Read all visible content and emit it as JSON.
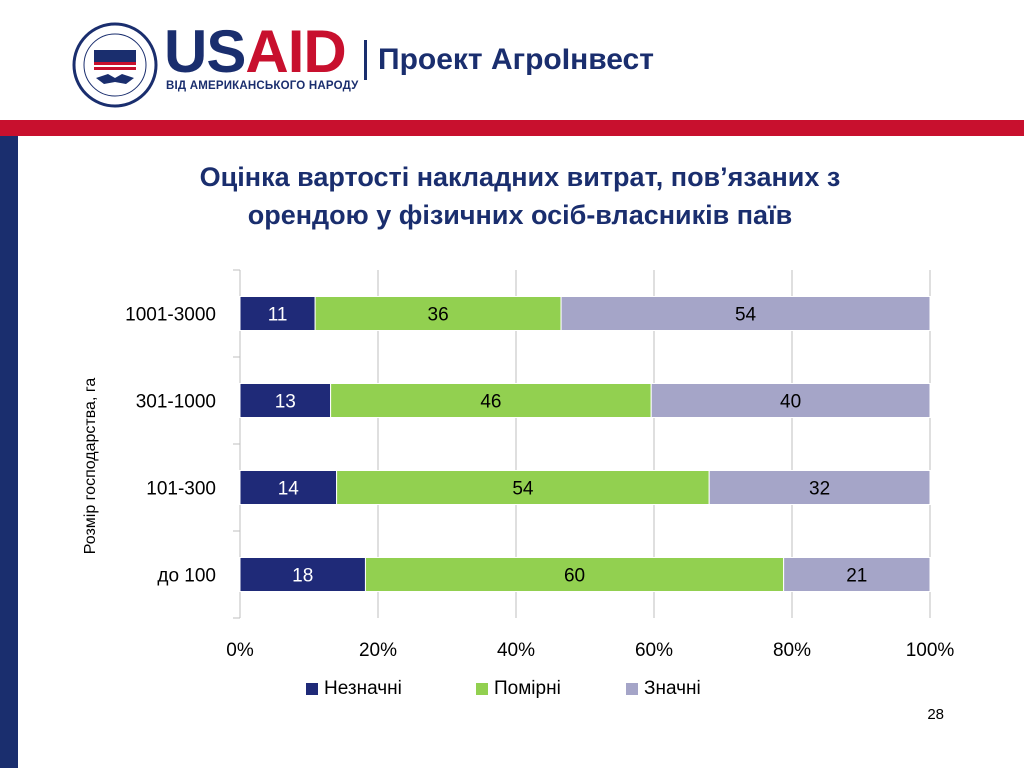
{
  "header": {
    "brand_us": "US",
    "brand_aid": "AID",
    "brand_tagline": "ВІД АМЕРИКАНСЬКОГО НАРОДУ",
    "project_name": "Проект АгроІнвест",
    "seal_icon": "usaid-seal-icon"
  },
  "slide": {
    "title_line1": "Оцінка вартості накладних витрат, пов’язаних з",
    "title_line2": "орендою у фізичних осіб-власників паїв",
    "page_number": "28"
  },
  "colors": {
    "brand_blue": "#1a2e6e",
    "brand_red": "#c8102e"
  },
  "chart_data": {
    "type": "bar",
    "orientation": "horizontal",
    "stacked": "percent",
    "ylabel": "Розмір господарства, га",
    "categories": [
      "1001-3000",
      "301-1000",
      "101-300",
      "до 100"
    ],
    "xlim": [
      0,
      100
    ],
    "xticks": [
      "0%",
      "20%",
      "40%",
      "60%",
      "80%",
      "100%"
    ],
    "grid": true,
    "legend_position": "bottom",
    "series": [
      {
        "name": "Незначні",
        "color": "#1f2a78",
        "label_color": "#ffffff",
        "values": [
          11,
          13,
          14,
          18
        ]
      },
      {
        "name": "Помірні",
        "color": "#92d050",
        "label_color": "#000000",
        "values": [
          36,
          46,
          54,
          60
        ]
      },
      {
        "name": "Значні",
        "color": "#a5a5c8",
        "label_color": "#000000",
        "values": [
          54,
          40,
          32,
          21
        ]
      }
    ]
  }
}
